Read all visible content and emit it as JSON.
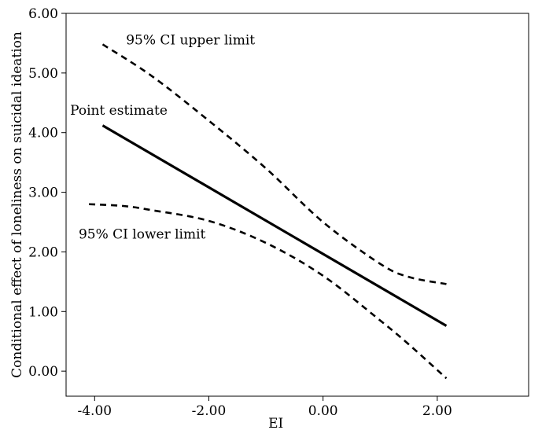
{
  "chart_data": {
    "type": "line",
    "title": "",
    "xlabel": "EI",
    "ylabel": "Conditional effect of loneliness on suicidal ideation",
    "xlim": [
      -4.5,
      3.6
    ],
    "ylim": [
      -0.42,
      6.0
    ],
    "x_ticks": [
      -4.0,
      -2.0,
      0.0,
      2.0
    ],
    "x_tick_labels": [
      "-4.00",
      "-2.00",
      "0.00",
      "2.00"
    ],
    "y_ticks": [
      0,
      1,
      2,
      3,
      4,
      5,
      6
    ],
    "y_tick_labels": [
      "0.00",
      "1.00",
      "2.00",
      "3.00",
      "4.00",
      "5.00",
      "6.00"
    ],
    "grid": false,
    "series": [
      {
        "name": "Point estimate",
        "style": "solid",
        "points": [
          [
            -3.86,
            4.12
          ],
          [
            2.16,
            0.76
          ]
        ]
      },
      {
        "name": "95% CI upper limit",
        "style": "dashed",
        "points": [
          [
            -3.86,
            5.48
          ],
          [
            -3.0,
            4.95
          ],
          [
            -2.0,
            4.2
          ],
          [
            -1.0,
            3.4
          ],
          [
            0.0,
            2.5
          ],
          [
            1.0,
            1.8
          ],
          [
            1.5,
            1.58
          ],
          [
            2.16,
            1.46
          ]
        ]
      },
      {
        "name": "95% CI lower limit",
        "style": "dashed",
        "points": [
          [
            -4.1,
            2.8
          ],
          [
            -3.5,
            2.77
          ],
          [
            -3.0,
            2.7
          ],
          [
            -2.0,
            2.52
          ],
          [
            -1.0,
            2.15
          ],
          [
            0.0,
            1.6
          ],
          [
            1.0,
            0.85
          ],
          [
            1.5,
            0.45
          ],
          [
            2.16,
            -0.12
          ]
        ]
      }
    ],
    "annotations": [
      {
        "text": "95% CI upper limit",
        "x": -3.45,
        "y": 5.48
      },
      {
        "text": "Point estimate",
        "x": -4.43,
        "y": 4.3
      },
      {
        "text": "95% CI lower limit",
        "x": -4.28,
        "y": 2.22
      }
    ]
  }
}
